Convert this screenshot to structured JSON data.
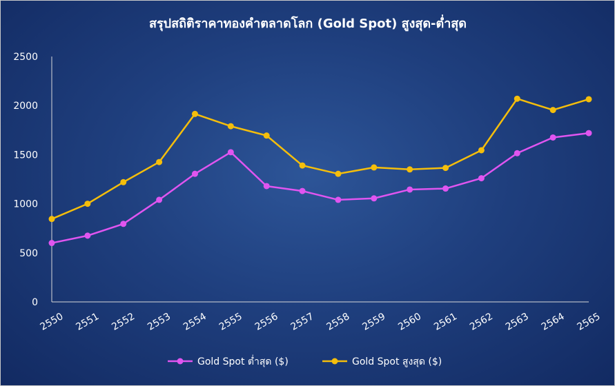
{
  "chart_data": {
    "type": "line",
    "title": "สรุปสถิติราคาทองคำตลาดโลก (Gold Spot) สูงสุด-ต่ำสุด",
    "xlabel": "",
    "ylabel": "",
    "x": [
      "2550",
      "2551",
      "2552",
      "2553",
      "2554",
      "2555",
      "2556",
      "2557",
      "2558",
      "2559",
      "2560",
      "2561",
      "2562",
      "2563",
      "2564",
      "2565"
    ],
    "y_ticks": [
      "0",
      "500",
      "1000",
      "1500",
      "2000",
      "2500"
    ],
    "ylim": [
      0,
      2500
    ],
    "grid": false,
    "legend_position": "bottom",
    "series": [
      {
        "name": "Gold Spot ต่ำสุด ($)",
        "color": "#e055f0",
        "values": [
          600,
          675,
          795,
          1040,
          1305,
          1525,
          1180,
          1130,
          1040,
          1055,
          1145,
          1155,
          1260,
          1515,
          1675,
          1720
        ]
      },
      {
        "name": "Gold Spot สูงสุด ($)",
        "color": "#f5be0b",
        "values": [
          845,
          1000,
          1220,
          1425,
          1915,
          1790,
          1695,
          1390,
          1305,
          1370,
          1350,
          1365,
          1545,
          2070,
          1955,
          2065
        ]
      }
    ]
  }
}
